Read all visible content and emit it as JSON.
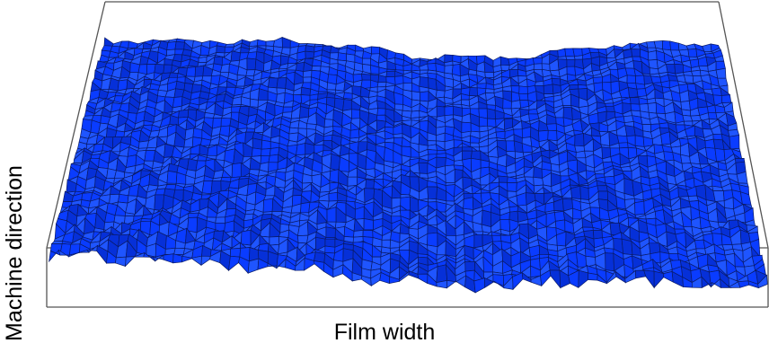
{
  "chart_data": {
    "type": "surface",
    "title": "",
    "xlabel": "Film width",
    "ylabel": "Machine direction",
    "surface_color": "#0a3cff",
    "mesh_color": "#0a1a66",
    "box_color": "#555555",
    "grid": true,
    "grid_cols": 76,
    "grid_rows": 40
  }
}
